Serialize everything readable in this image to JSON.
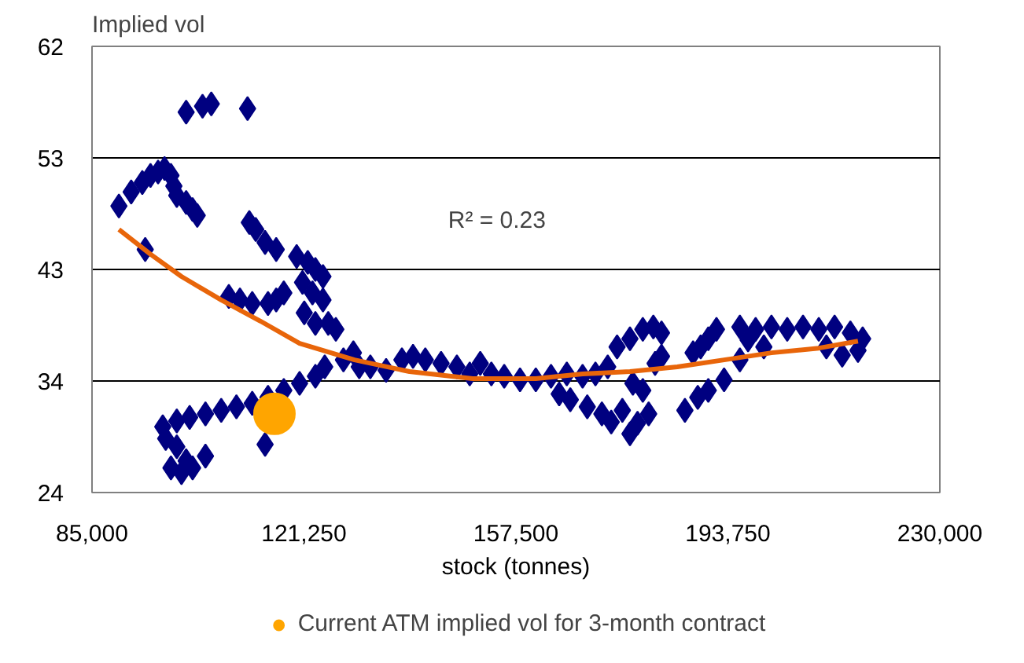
{
  "chart_data": {
    "type": "scatter",
    "xlabel": "stock (tonnes)",
    "ylabel": "Implied vol",
    "xlim": [
      85000,
      230000
    ],
    "ylim": [
      24,
      62
    ],
    "xticks": [
      {
        "value": 85000,
        "label": "85,000"
      },
      {
        "value": 121250,
        "label": "121,250"
      },
      {
        "value": 157500,
        "label": "157,500"
      },
      {
        "value": 193750,
        "label": "193,750"
      },
      {
        "value": 230000,
        "label": "230,000"
      }
    ],
    "yticks": [
      24,
      {
        "value": 33.5,
        "label": "34"
      },
      43,
      {
        "value": 52.5,
        "label": "53"
      },
      62
    ],
    "grid": "y",
    "legend": "bottom",
    "annotations": [
      "R² = 0.23"
    ],
    "series": [
      {
        "marker": "diamond",
        "color": "#000080",
        "x": [
          101100,
          103900,
          105400,
          111600,
          89600,
          91700,
          93600,
          95000,
          96300,
          97400,
          98500,
          99000,
          99500,
          101100,
          102200,
          103000,
          94100,
          111900,
          113000,
          114600,
          116500,
          120000,
          121900,
          123200,
          124500,
          121000,
          122700,
          124500,
          121300,
          123200,
          125400,
          126700,
          117800,
          116500,
          112400,
          110300,
          108400,
          115100,
          97600,
          99500,
          101100,
          98500,
          100300,
          102200,
          104400,
          97100,
          99500,
          101700,
          104400,
          107100,
          109700,
          112400,
          115100,
          117800,
          120500,
          123200,
          124800,
          128000,
          129700,
          130700,
          132600,
          114600,
          135300,
          138000,
          139900,
          142000,
          144700,
          147400,
          149600,
          151400,
          153300,
          155500,
          158200,
          160900,
          163500,
          166200,
          168900,
          171100,
          173200,
          174800,
          177000,
          179200,
          181000,
          182400,
          164900,
          166800,
          169700,
          172200,
          173800,
          175700,
          177500,
          179200,
          180200,
          177000,
          178300,
          181300,
          182400,
          187800,
          189100,
          190400,
          188600,
          190400,
          193100,
          195800,
          186400,
          191800,
          195800,
          198500,
          201200,
          203900,
          206600,
          209300,
          212000,
          214700,
          210600,
          213300,
          216000,
          216800,
          197200,
          199900
        ],
        "values": [
          56.4,
          56.9,
          57.1,
          56.7,
          48.4,
          49.6,
          50.4,
          51.0,
          51.3,
          51.6,
          51.0,
          50.1,
          49.3,
          48.7,
          48.1,
          47.6,
          44.7,
          47.0,
          46.4,
          45.3,
          44.7,
          44.1,
          43.6,
          43.0,
          42.4,
          41.9,
          41.0,
          40.4,
          39.3,
          38.4,
          38.4,
          37.9,
          41.0,
          40.4,
          40.1,
          40.4,
          40.7,
          40.1,
          28.6,
          27.9,
          26.7,
          26.1,
          25.7,
          26.1,
          27.1,
          29.6,
          30.1,
          30.4,
          30.7,
          31.0,
          31.3,
          31.6,
          32.1,
          32.7,
          33.3,
          33.9,
          34.7,
          35.3,
          35.9,
          34.7,
          34.7,
          28.1,
          34.4,
          35.3,
          35.6,
          35.3,
          35.0,
          34.7,
          34.1,
          35.0,
          34.1,
          33.9,
          33.6,
          33.6,
          33.9,
          34.1,
          33.9,
          34.1,
          34.7,
          36.4,
          37.1,
          37.9,
          38.1,
          37.6,
          32.4,
          31.9,
          31.3,
          30.7,
          30.0,
          31.0,
          33.3,
          32.7,
          30.7,
          29.0,
          29.9,
          35.0,
          35.6,
          35.9,
          36.4,
          37.1,
          32.1,
          32.7,
          33.6,
          35.3,
          31.0,
          37.9,
          38.1,
          37.9,
          38.1,
          37.9,
          38.1,
          37.9,
          38.1,
          37.6,
          36.4,
          35.7,
          36.1,
          37.1,
          37.0,
          36.4
        ]
      },
      {
        "type": "line",
        "marker": "none",
        "color": "#e8650a",
        "x": [
          89600,
          95000,
          100300,
          107100,
          113800,
          120500,
          129900,
          139300,
          150100,
          160900,
          168900,
          177000,
          185100,
          193100,
          201200,
          209300,
          216000
        ],
        "values": [
          46.4,
          44.3,
          42.4,
          40.4,
          38.6,
          36.7,
          35.3,
          34.3,
          33.7,
          33.7,
          34.1,
          34.3,
          34.7,
          35.3,
          35.9,
          36.3,
          36.9
        ]
      },
      {
        "marker": "circle",
        "name": "Current ATM implied vol for 3-month contract",
        "color": "#ffa500",
        "x": [
          116200
        ],
        "values": [
          30.7
        ]
      }
    ]
  }
}
